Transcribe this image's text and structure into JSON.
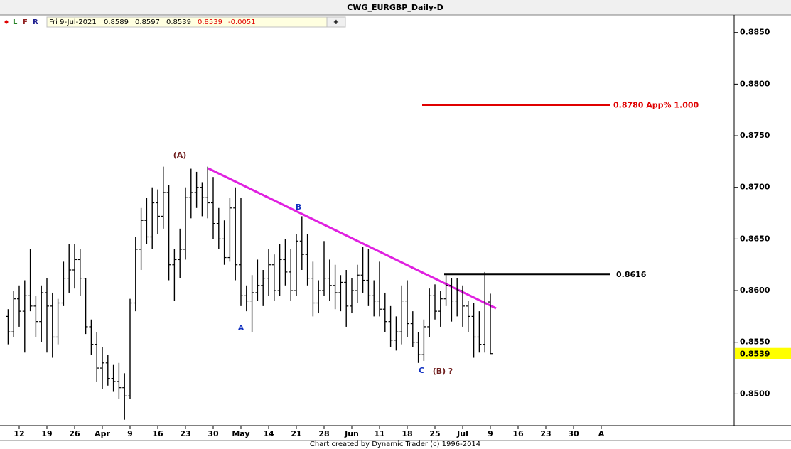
{
  "chart_data": {
    "type": "ohlc",
    "title": "CWG_EURGBP_Daily-D",
    "toolbar": [
      "L",
      "F",
      "R"
    ],
    "info_date": "Fri 9-Jul-2021",
    "change": -0.0051,
    "footer": "Chart created by Dynamic Trader  (c) 1996-2014",
    "color": "#000000",
    "categories": [
      null,
      null,
      "12",
      null,
      null,
      null,
      null,
      "19",
      null,
      null,
      null,
      null,
      "26",
      null,
      null,
      null,
      null,
      "Apr",
      null,
      null,
      null,
      null,
      "9",
      null,
      null,
      null,
      null,
      "16",
      null,
      null,
      null,
      null,
      "23",
      null,
      null,
      null,
      null,
      "30",
      null,
      null,
      null,
      null,
      "May",
      null,
      null,
      null,
      null,
      "14",
      null,
      null,
      null,
      null,
      "21",
      null,
      null,
      null,
      null,
      "28",
      null,
      null,
      null,
      null,
      "Jun",
      null,
      null,
      null,
      null,
      "11",
      null,
      null,
      null,
      null,
      "18",
      null,
      null,
      null,
      null,
      "25",
      null,
      null,
      null,
      null,
      "Jul",
      null,
      null,
      null,
      null,
      "9",
      null,
      null,
      null,
      null,
      "16",
      null,
      null,
      null,
      null,
      "23",
      null,
      null,
      null,
      null,
      "30",
      null,
      null,
      null,
      null,
      "A"
    ],
    "ohlc": {
      "open": [
        0.8575,
        0.856,
        0.8592,
        0.858,
        0.8595,
        0.8585,
        0.857,
        0.8598,
        0.8585,
        0.8555,
        0.8588,
        0.8612,
        0.862,
        0.863,
        0.8612,
        0.8565,
        0.8548,
        0.8525,
        0.853,
        0.8515,
        0.8512,
        0.8506,
        0.8498,
        0.8588,
        0.864,
        0.8668,
        0.8652,
        0.8685,
        0.8672,
        0.8695,
        0.8625,
        0.863,
        0.864,
        0.869,
        0.8695,
        0.87,
        0.869,
        0.8685,
        0.8665,
        0.865,
        0.8632,
        0.868,
        0.8625,
        0.8595,
        0.859,
        0.8598,
        0.8605,
        0.8612,
        0.8625,
        0.86,
        0.863,
        0.8618,
        0.86,
        0.8648,
        0.8635,
        0.8612,
        0.8588,
        0.86,
        0.8612,
        0.8605,
        0.8598,
        0.8608,
        0.8585,
        0.86,
        0.8615,
        0.861,
        0.8595,
        0.859,
        0.8582,
        0.857,
        0.8552,
        0.856,
        0.859,
        0.8568,
        0.855,
        0.8538,
        0.8565,
        0.8595,
        0.858,
        0.8592,
        0.8605,
        0.859,
        0.86,
        0.8585,
        0.8575,
        0.8555,
        0.8548,
        0.8589,
        null,
        null,
        null,
        null,
        null,
        null,
        null,
        null,
        null,
        null,
        null,
        null,
        null,
        null,
        null,
        null,
        null,
        null,
        null,
        null
      ],
      "high": [
        0.8582,
        0.86,
        0.8605,
        0.861,
        0.864,
        0.8595,
        0.8605,
        0.8612,
        0.8598,
        0.8592,
        0.8628,
        0.8645,
        0.8645,
        0.864,
        0.8612,
        0.8572,
        0.856,
        0.8545,
        0.8538,
        0.8528,
        0.853,
        0.852,
        0.8592,
        0.8652,
        0.868,
        0.869,
        0.87,
        0.8698,
        0.872,
        0.8702,
        0.864,
        0.866,
        0.87,
        0.8718,
        0.8715,
        0.8705,
        0.872,
        0.871,
        0.868,
        0.8668,
        0.869,
        0.87,
        0.869,
        0.8605,
        0.8615,
        0.863,
        0.862,
        0.864,
        0.8635,
        0.8645,
        0.865,
        0.864,
        0.8655,
        0.8672,
        0.8655,
        0.8628,
        0.861,
        0.8648,
        0.863,
        0.8625,
        0.8615,
        0.862,
        0.8612,
        0.8625,
        0.8642,
        0.864,
        0.861,
        0.8628,
        0.8598,
        0.8585,
        0.8575,
        0.8605,
        0.861,
        0.858,
        0.856,
        0.8572,
        0.8602,
        0.8606,
        0.86,
        0.8615,
        0.8612,
        0.8612,
        0.8605,
        0.859,
        0.8588,
        0.858,
        0.8618,
        0.8597,
        null,
        null,
        null,
        null,
        null,
        null,
        null,
        null,
        null,
        null,
        null,
        null,
        null,
        null,
        null,
        null,
        null,
        null,
        null,
        null
      ],
      "low": [
        0.8548,
        0.8555,
        0.8565,
        0.854,
        0.858,
        0.8555,
        0.855,
        0.854,
        0.8535,
        0.8548,
        0.8585,
        0.8598,
        0.8602,
        0.8595,
        0.8558,
        0.8538,
        0.8512,
        0.8505,
        0.8508,
        0.8502,
        0.8495,
        0.8475,
        0.8495,
        0.858,
        0.862,
        0.8645,
        0.864,
        0.8655,
        0.866,
        0.861,
        0.859,
        0.8612,
        0.863,
        0.867,
        0.868,
        0.8672,
        0.867,
        0.865,
        0.864,
        0.8625,
        0.8628,
        0.861,
        0.8585,
        0.858,
        0.856,
        0.859,
        0.8585,
        0.8595,
        0.859,
        0.8595,
        0.8605,
        0.859,
        0.8595,
        0.862,
        0.8605,
        0.8575,
        0.8578,
        0.8595,
        0.859,
        0.8582,
        0.858,
        0.8565,
        0.8578,
        0.8588,
        0.8598,
        0.8585,
        0.8575,
        0.8575,
        0.856,
        0.8545,
        0.8542,
        0.8548,
        0.8555,
        0.8545,
        0.853,
        0.8532,
        0.8555,
        0.8572,
        0.8565,
        0.8585,
        0.857,
        0.8575,
        0.8565,
        0.856,
        0.8535,
        0.854,
        0.854,
        0.8539,
        null,
        null,
        null,
        null,
        null,
        null,
        null,
        null,
        null,
        null,
        null,
        null,
        null,
        null,
        null,
        null,
        null,
        null,
        null,
        null
      ],
      "close": [
        0.856,
        0.8592,
        0.858,
        0.8595,
        0.8585,
        0.857,
        0.8598,
        0.8585,
        0.8555,
        0.8588,
        0.8612,
        0.862,
        0.863,
        0.8612,
        0.8565,
        0.8548,
        0.8525,
        0.853,
        0.8515,
        0.8512,
        0.8506,
        0.8498,
        0.8588,
        0.864,
        0.8668,
        0.8652,
        0.8685,
        0.8672,
        0.8695,
        0.8625,
        0.863,
        0.864,
        0.869,
        0.8695,
        0.87,
        0.869,
        0.8685,
        0.8665,
        0.865,
        0.8632,
        0.868,
        0.8625,
        0.8595,
        0.859,
        0.8598,
        0.8605,
        0.8612,
        0.8625,
        0.86,
        0.863,
        0.8618,
        0.86,
        0.8648,
        0.8635,
        0.8612,
        0.8588,
        0.86,
        0.8612,
        0.8605,
        0.8598,
        0.8608,
        0.8585,
        0.86,
        0.8615,
        0.861,
        0.8595,
        0.859,
        0.8582,
        0.857,
        0.8552,
        0.856,
        0.859,
        0.8568,
        0.855,
        0.8538,
        0.8565,
        0.8595,
        0.858,
        0.8592,
        0.8605,
        0.859,
        0.86,
        0.8585,
        0.8575,
        0.8555,
        0.8548,
        0.8588,
        0.8539,
        null,
        null,
        null,
        null,
        null,
        null,
        null,
        null,
        null,
        null,
        null,
        null,
        null,
        null,
        null,
        null,
        null,
        null,
        null,
        null
      ]
    },
    "ylim": [
      0.847,
      0.8867
    ],
    "yticks": [
      {
        "value": 0.85,
        "label": "0.8500"
      },
      {
        "value": 0.855,
        "label": "0.8550"
      },
      {
        "value": 0.86,
        "label": "0.8600"
      },
      {
        "value": 0.865,
        "label": "0.8650"
      },
      {
        "value": 0.87,
        "label": "0.8700"
      },
      {
        "value": 0.875,
        "label": "0.8750"
      },
      {
        "value": 0.88,
        "label": "0.8800"
      },
      {
        "value": 0.885,
        "label": "0.8850"
      }
    ],
    "levels": [
      {
        "value": 0.8616,
        "color": "#000000"
      },
      {
        "value": 0.878,
        "label": "0.8780 App% 1.000",
        "color": "#e00000"
      }
    ],
    "annotations": [
      "(A)",
      "A",
      "B",
      "C",
      "(B)",
      "?"
    ]
  }
}
